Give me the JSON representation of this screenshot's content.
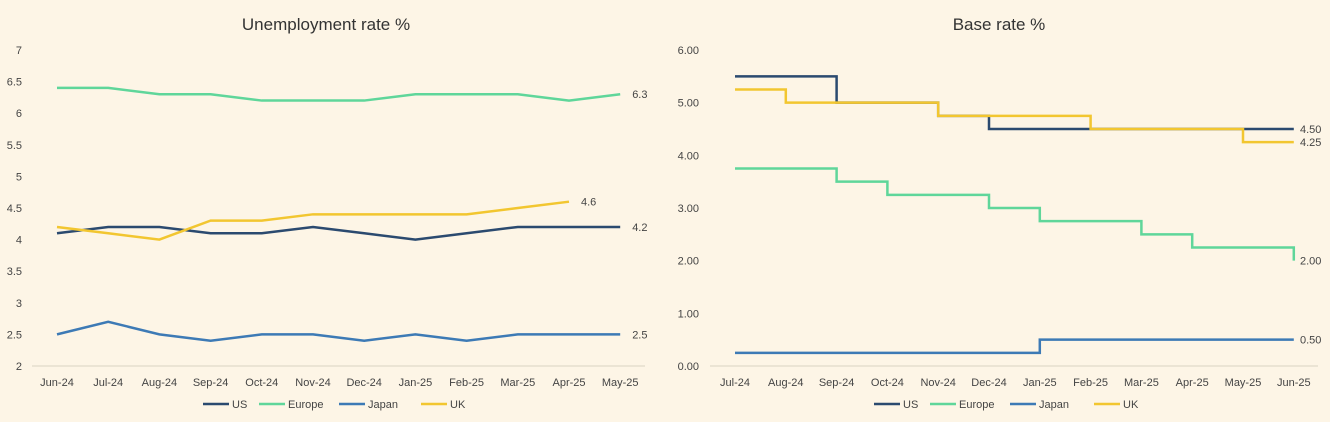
{
  "chart_data": [
    {
      "type": "line",
      "title": "Unemployment rate %",
      "categories": [
        "Jun-24",
        "Jul-24",
        "Aug-24",
        "Sep-24",
        "Oct-24",
        "Nov-24",
        "Dec-24",
        "Jan-25",
        "Feb-25",
        "Mar-25",
        "Apr-25",
        "May-25"
      ],
      "ylim": [
        2,
        7
      ],
      "yticks": [
        "2",
        "2.5",
        "3",
        "3.5",
        "4",
        "4.5",
        "5",
        "5.5",
        "6",
        "6.5",
        "7"
      ],
      "ytick_values": [
        2,
        2.5,
        3,
        3.5,
        4,
        4.5,
        5,
        5.5,
        6,
        6.5,
        7
      ],
      "grid": false,
      "legend": "bottom",
      "series": [
        {
          "name": "US",
          "color": "#2b4a6f",
          "values": [
            4.1,
            4.2,
            4.2,
            4.1,
            4.1,
            4.2,
            4.1,
            4.0,
            4.1,
            4.2,
            4.2,
            4.2
          ],
          "end_label": "4.2"
        },
        {
          "name": "Europe",
          "color": "#5fd69a",
          "values": [
            6.4,
            6.4,
            6.3,
            6.3,
            6.2,
            6.2,
            6.2,
            6.3,
            6.3,
            6.3,
            6.2,
            6.3
          ],
          "end_label": "6.3"
        },
        {
          "name": "Japan",
          "color": "#3d7ab5",
          "values": [
            2.5,
            2.7,
            2.5,
            2.4,
            2.5,
            2.5,
            2.4,
            2.5,
            2.4,
            2.5,
            2.5,
            2.5
          ],
          "end_label": "2.5"
        },
        {
          "name": "UK",
          "color": "#f2c630",
          "values": [
            4.2,
            4.1,
            4.0,
            4.3,
            4.3,
            4.4,
            4.4,
            4.4,
            4.4,
            4.5,
            4.6,
            null
          ],
          "end_label": "4.6"
        }
      ]
    },
    {
      "type": "line",
      "step": true,
      "title": "Base rate %",
      "categories": [
        "Jul-24",
        "Aug-24",
        "Sep-24",
        "Oct-24",
        "Nov-24",
        "Dec-24",
        "Jan-25",
        "Feb-25",
        "Mar-25",
        "Apr-25",
        "May-25",
        "Jun-25"
      ],
      "ylim": [
        0,
        6
      ],
      "yticks": [
        "0.00",
        "1.00",
        "2.00",
        "3.00",
        "4.00",
        "5.00",
        "6.00"
      ],
      "ytick_values": [
        0,
        1,
        2,
        3,
        4,
        5,
        6
      ],
      "grid": false,
      "legend": "bottom",
      "series": [
        {
          "name": "US",
          "color": "#2b4a6f",
          "values": [
            5.5,
            5.5,
            5.0,
            5.0,
            4.75,
            4.5,
            4.5,
            4.5,
            4.5,
            4.5,
            4.5,
            4.5
          ],
          "end_label": "4.50"
        },
        {
          "name": "Europe",
          "color": "#5fd69a",
          "values": [
            3.75,
            3.75,
            3.5,
            3.25,
            3.25,
            3.0,
            2.75,
            2.75,
            2.5,
            2.25,
            2.25,
            2.0
          ],
          "end_label": "2.00"
        },
        {
          "name": "Japan",
          "color": "#3d7ab5",
          "values": [
            0.25,
            0.25,
            0.25,
            0.25,
            0.25,
            0.25,
            0.5,
            0.5,
            0.5,
            0.5,
            0.5,
            0.5
          ],
          "end_label": "0.50"
        },
        {
          "name": "UK",
          "color": "#f2c630",
          "values": [
            5.25,
            5.0,
            5.0,
            5.0,
            4.75,
            4.75,
            4.75,
            4.5,
            4.5,
            4.5,
            4.25,
            4.25
          ],
          "end_label": "4.25"
        }
      ]
    }
  ]
}
